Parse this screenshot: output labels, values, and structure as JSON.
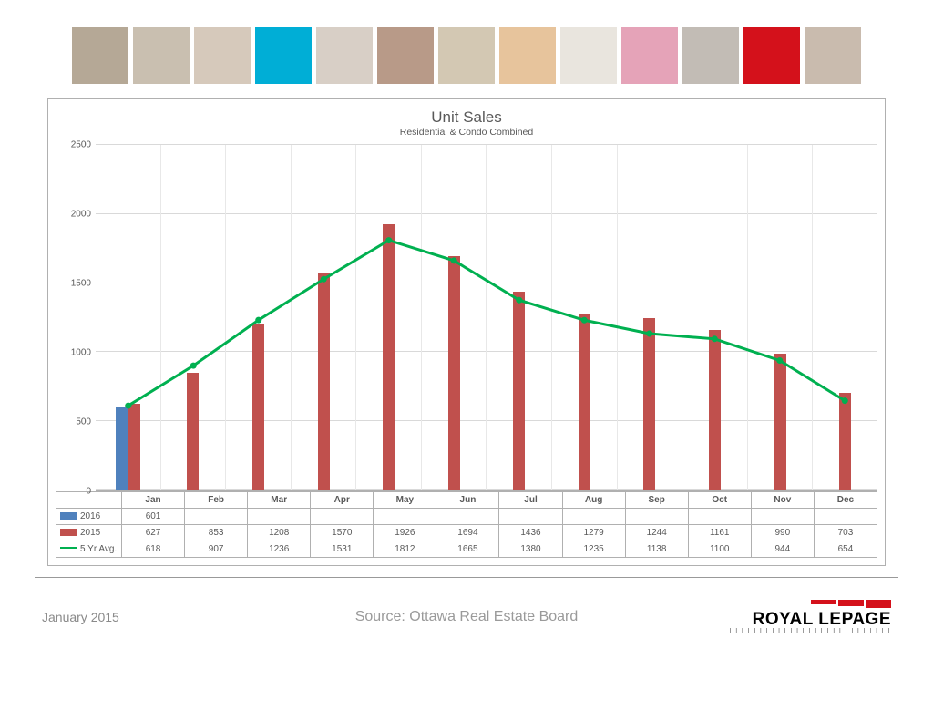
{
  "thumb_colors": [
    "#b5a896",
    "#c9bfb0",
    "#d6c9bb",
    "#00aed6",
    "#d8cfc6",
    "#b89a88",
    "#d3c8b3",
    "#e7c49c",
    "#e9e5de",
    "#e5a3b8",
    "#c2bcb5",
    "#d4111b",
    "#c9bbae"
  ],
  "chart": {
    "title": "Unit Sales",
    "subtitle": "Residential & Condo Combined",
    "y_max": 2500,
    "y_ticks": [
      2500,
      2000,
      1500,
      1000,
      500,
      0
    ],
    "months": [
      "Jan",
      "Feb",
      "Mar",
      "Apr",
      "May",
      "Jun",
      "Jul",
      "Aug",
      "Sep",
      "Oct",
      "Nov",
      "Dec"
    ],
    "series": [
      {
        "name": "2016",
        "type": "bar",
        "color": "#4f81bd",
        "values": [
          601,
          null,
          null,
          null,
          null,
          null,
          null,
          null,
          null,
          null,
          null,
          null
        ]
      },
      {
        "name": "2015",
        "type": "bar",
        "color": "#c0504d",
        "values": [
          627,
          853,
          1208,
          1570,
          1926,
          1694,
          1436,
          1279,
          1244,
          1161,
          990,
          703
        ]
      },
      {
        "name": "5 Yr Avg.",
        "type": "line",
        "color": "#00b050",
        "values": [
          618,
          907,
          1236,
          1531,
          1812,
          1665,
          1380,
          1235,
          1138,
          1100,
          944,
          654
        ]
      }
    ]
  },
  "footer": {
    "date": "January 2015",
    "source": "Source: Ottawa Real Estate Board",
    "logo_name": "ROYAL LEPAGE",
    "logo_red": "#d4111b"
  }
}
